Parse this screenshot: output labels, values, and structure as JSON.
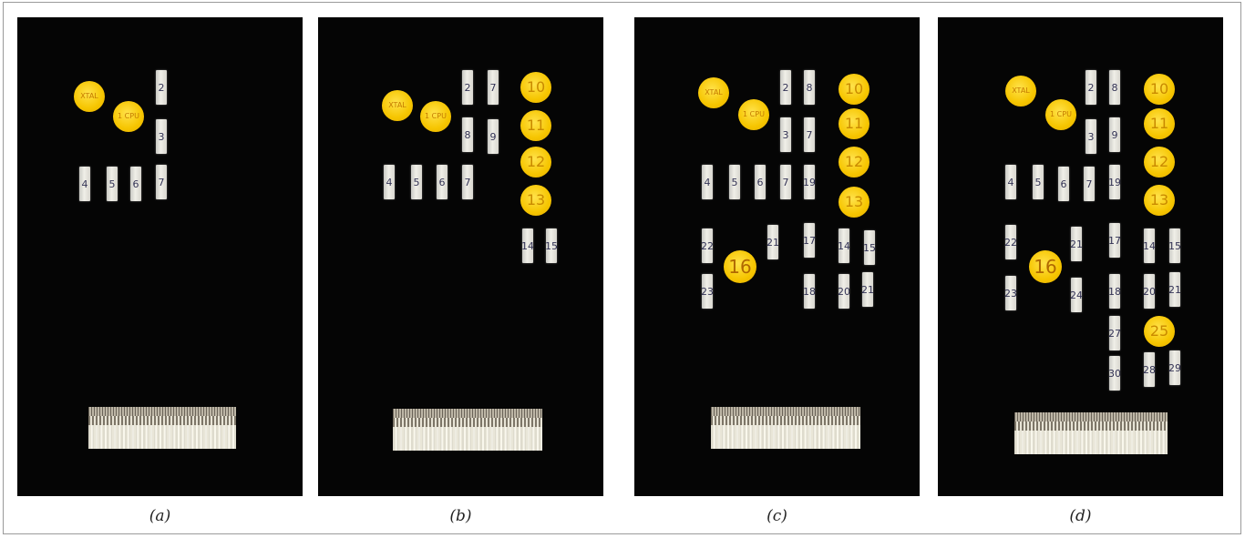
{
  "captions": [
    "(a)",
    "(b)",
    "(c)",
    "(d)"
  ],
  "labels": {
    "xtal": "XTAL",
    "cpu": "1 CPU"
  },
  "panel_a": {
    "chips": [
      "2",
      "3",
      "4",
      "5",
      "6",
      "7"
    ]
  },
  "panel_b": {
    "chips": [
      "2",
      "7",
      "8",
      "9",
      "4",
      "5",
      "6",
      "7",
      "14",
      "15"
    ],
    "dots": [
      "10",
      "11",
      "12",
      "13"
    ]
  },
  "panel_c": {
    "chips": [
      "2",
      "8",
      "3",
      "7",
      "4",
      "5",
      "6",
      "7",
      "19",
      "22",
      "21",
      "17",
      "14",
      "15",
      "23",
      "18",
      "20",
      "21"
    ],
    "dots": [
      "10",
      "11",
      "12",
      "13"
    ],
    "big_dot": "16"
  },
  "panel_d": {
    "chips": [
      "2",
      "8",
      "3",
      "9",
      "4",
      "5",
      "6",
      "7",
      "19",
      "22",
      "21",
      "17",
      "14",
      "15",
      "23",
      "24",
      "18",
      "20",
      "21",
      "27",
      "30",
      "28",
      "29"
    ],
    "dots": [
      "10",
      "11",
      "12",
      "13"
    ],
    "big_dot": "16",
    "dot_25": "25"
  },
  "colors": {
    "panel": "#050505",
    "dot": "#f6c500",
    "chip": "#e8e6df"
  }
}
